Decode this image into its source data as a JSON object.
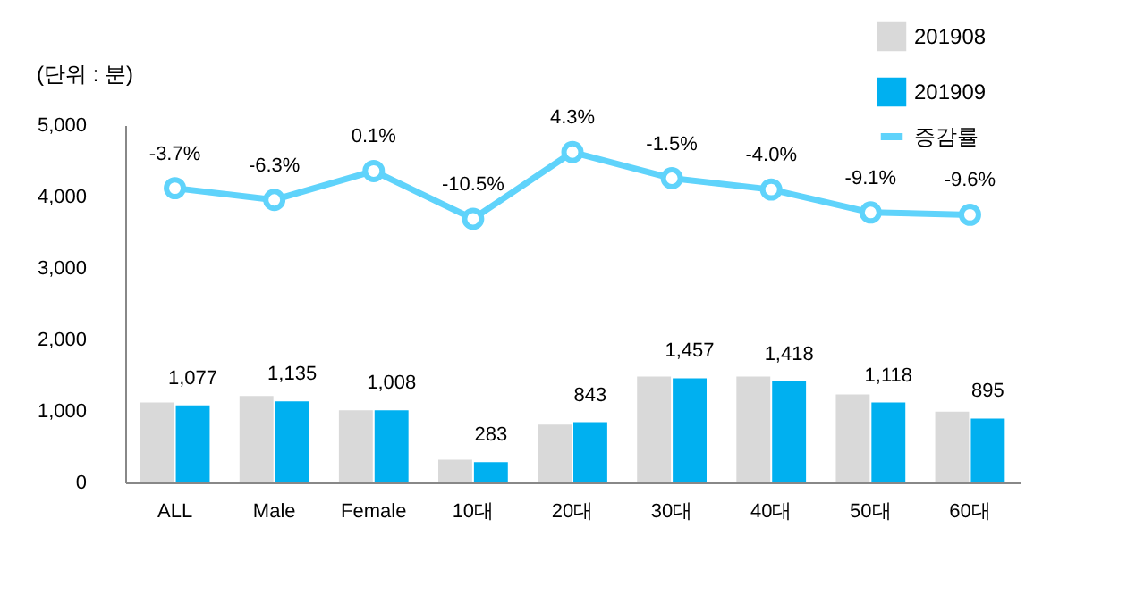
{
  "chart_data": {
    "type": "bar",
    "ylabel": "(단위 : 분)",
    "categories": [
      "ALL",
      "Male",
      "Female",
      "10대",
      "20대",
      "30대",
      "40대",
      "50대",
      "60대"
    ],
    "ylim": [
      0,
      5000
    ],
    "yticks": [
      {
        "value": 0,
        "label": "0"
      },
      {
        "value": 1000,
        "label": "1,000"
      },
      {
        "value": 2000,
        "label": "2,000"
      },
      {
        "value": 3000,
        "label": "3,000"
      },
      {
        "value": 4000,
        "label": "4,000"
      },
      {
        "value": 5000,
        "label": "5,000"
      }
    ],
    "y2lim": [
      -69,
      10.3
    ],
    "series": [
      {
        "name": "201908",
        "color": "#d9d9d9",
        "values": [
          1120,
          1210,
          1010,
          320,
          810,
          1480,
          1480,
          1230,
          990
        ]
      },
      {
        "name": "201909",
        "color": "#00b0f0",
        "values": [
          1077,
          1135,
          1008,
          283,
          843,
          1457,
          1418,
          1118,
          895
        ],
        "value_labels": [
          "1,077",
          "1,135",
          "1,008",
          "283",
          "843",
          "1,457",
          "1,418",
          "1,118",
          "895"
        ]
      },
      {
        "name": "증감률",
        "type": "line",
        "axis": "y2",
        "color": "#5fd3fb",
        "values": [
          -3.7,
          -6.3,
          0.1,
          -10.5,
          4.3,
          -1.5,
          -4.0,
          -9.1,
          -9.6
        ],
        "value_labels": [
          "-3.7%",
          "-6.3%",
          "0.1%",
          "-10.5%",
          "4.3%",
          "-1.5%",
          "-4.0%",
          "-9.1%",
          "-9.6%"
        ]
      }
    ],
    "grid": false,
    "legend": "top right",
    "marker": "circle",
    "line_style": "solid"
  }
}
